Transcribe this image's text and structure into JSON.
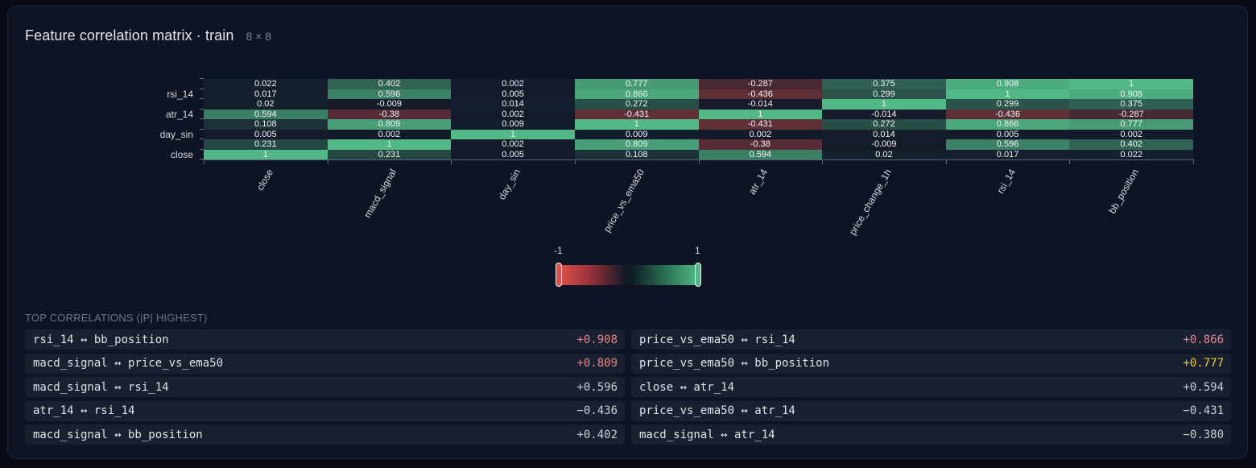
{
  "panel": {
    "title": "Feature correlation matrix · train",
    "subtitle": "8 × 8"
  },
  "colors": {
    "negative": "#e0524d",
    "neutral": "#131a2a",
    "positive": "#52b886",
    "value_high": "#e8868a",
    "value_mid": "#f2c94c",
    "value_normal": "#c9ced8"
  },
  "chart_data": {
    "type": "heatmap",
    "title": "Feature correlation matrix · train",
    "subtitle": "8 × 8",
    "x": [
      "close",
      "macd_signal",
      "day_sin",
      "price_vs_ema50",
      "atr_14",
      "price_change_1h",
      "rsi_14",
      "bb_position"
    ],
    "y": [
      "close",
      "macd_signal",
      "day_sin",
      "price_vs_ema50",
      "atr_14",
      "price_change_1h",
      "rsi_14",
      "bb_position"
    ],
    "y_tick_labels_shown": [
      "close",
      "day_sin",
      "atr_14",
      "rsi_14"
    ],
    "values": [
      [
        1,
        0.231,
        0.005,
        0.108,
        0.594,
        0.02,
        0.017,
        0.022
      ],
      [
        0.231,
        1,
        0.002,
        0.809,
        -0.38,
        -0.009,
        0.596,
        0.402
      ],
      [
        0.005,
        0.002,
        1,
        0.009,
        0.002,
        0.014,
        0.005,
        0.002
      ],
      [
        0.108,
        0.809,
        0.009,
        1,
        -0.431,
        0.272,
        0.866,
        0.777
      ],
      [
        0.594,
        -0.38,
        0.002,
        -0.431,
        1,
        -0.014,
        -0.436,
        -0.287
      ],
      [
        0.02,
        -0.009,
        0.014,
        0.272,
        -0.014,
        1,
        0.299,
        0.375
      ],
      [
        0.017,
        0.596,
        0.005,
        0.866,
        -0.436,
        0.299,
        1,
        0.908
      ],
      [
        0.022,
        0.402,
        0.002,
        0.777,
        -0.287,
        0.375,
        0.908,
        1
      ]
    ],
    "colorscale": {
      "min": -1,
      "max": 1,
      "min_label": "-1",
      "max_label": "1"
    },
    "grid": false,
    "legend_position": "bottom-center colorbar"
  },
  "top_correlations": {
    "label": "Top correlations (|ρ| highest)",
    "items": [
      {
        "pair": "rsi_14 ↔ bb_position",
        "value": "+0.908",
        "tone": "hi"
      },
      {
        "pair": "price_vs_ema50 ↔ rsi_14",
        "value": "+0.866",
        "tone": "hi"
      },
      {
        "pair": "macd_signal ↔ price_vs_ema50",
        "value": "+0.809",
        "tone": "hi"
      },
      {
        "pair": "price_vs_ema50 ↔ bb_position",
        "value": "+0.777",
        "tone": "mid"
      },
      {
        "pair": "macd_signal ↔ rsi_14",
        "value": "+0.596",
        "tone": "normal"
      },
      {
        "pair": "close ↔ atr_14",
        "value": "+0.594",
        "tone": "normal"
      },
      {
        "pair": "atr_14 ↔ rsi_14",
        "value": "−0.436",
        "tone": "normal"
      },
      {
        "pair": "price_vs_ema50 ↔ atr_14",
        "value": "−0.431",
        "tone": "normal"
      },
      {
        "pair": "macd_signal ↔ bb_position",
        "value": "+0.402",
        "tone": "normal"
      },
      {
        "pair": "macd_signal ↔ atr_14",
        "value": "−0.380",
        "tone": "normal"
      }
    ]
  }
}
